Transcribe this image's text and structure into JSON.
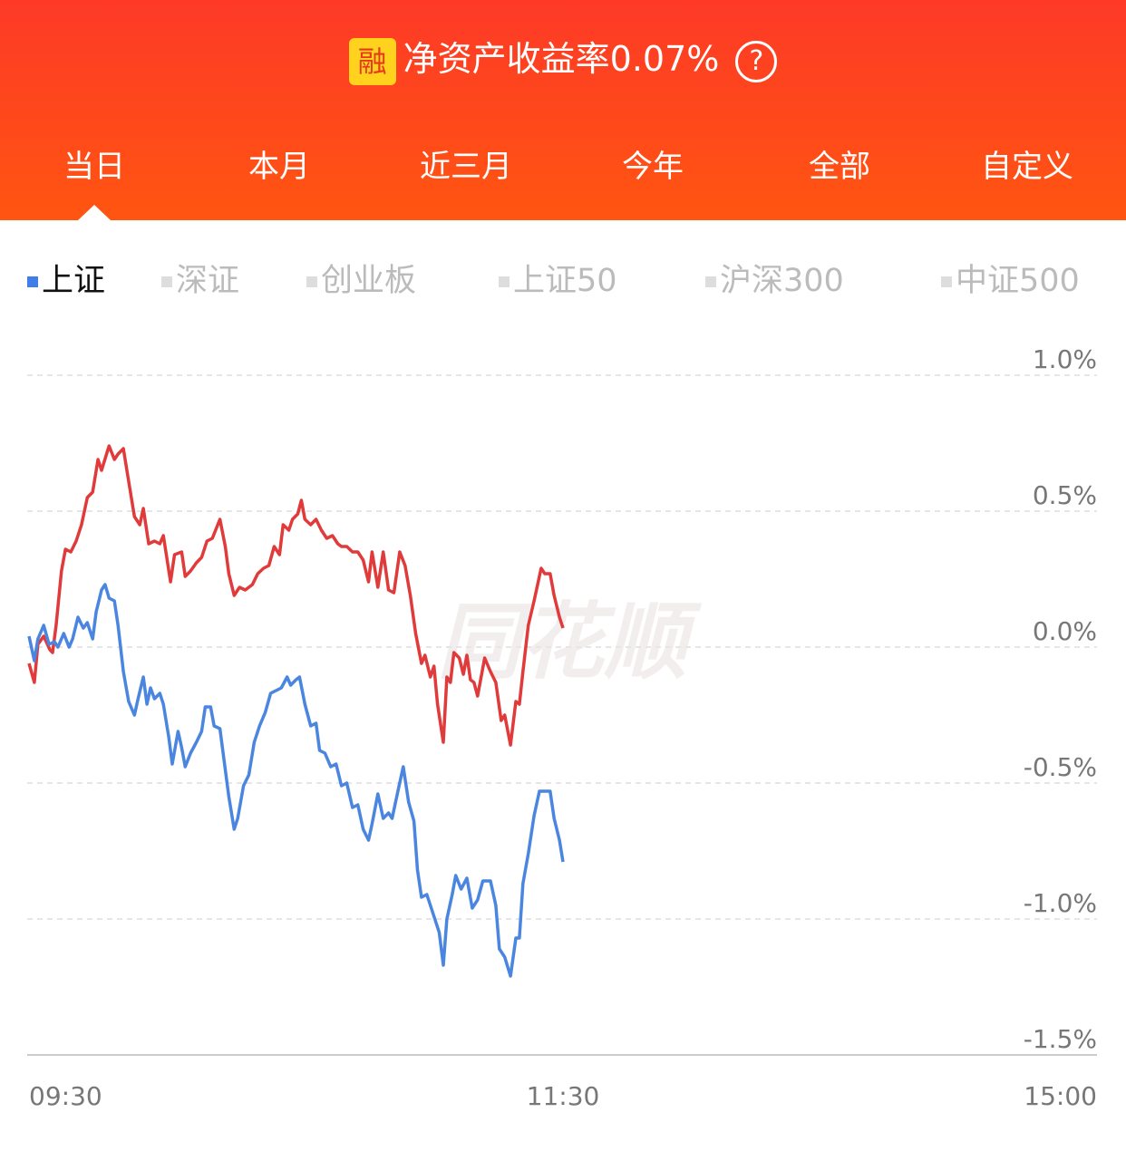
{
  "header": {
    "badge": "融",
    "title": "净资产收益率0.07%",
    "help": "?"
  },
  "tabs": [
    "当日",
    "本月",
    "近三月",
    "今年",
    "全部",
    "自定义"
  ],
  "indices": [
    "上证",
    "深证",
    "创业板",
    "上证50",
    "沪深300",
    "中证500"
  ],
  "watermark": "同花顺",
  "chart_data": {
    "type": "line",
    "xlim": [
      0,
      240
    ],
    "xticks": [
      {
        "value": 0,
        "label": "09:30"
      },
      {
        "value": 120,
        "label": "11:30"
      },
      {
        "value": 240,
        "label": "15:00"
      }
    ],
    "ylim": [
      -1.5,
      1.0
    ],
    "yticks": [
      {
        "value": 1.0,
        "label": "1.0%"
      },
      {
        "value": 0.5,
        "label": "0.5%"
      },
      {
        "value": 0,
        "label": "0.0%"
      },
      {
        "value": -0.5,
        "label": "-0.5%"
      },
      {
        "value": -1.0,
        "label": "-1.0%"
      },
      {
        "value": -1.5,
        "label": "-1.5%"
      }
    ],
    "grid": true,
    "series": [
      {
        "color": "#e03a3a",
        "x": [
          0,
          1.2,
          2.0,
          3.3,
          4.7,
          5.3,
          6.1,
          7.3,
          8.2,
          9.4,
          10.6,
          11.8,
          13.1,
          14.3,
          15.5,
          16.3,
          18.0,
          19.2,
          20.0,
          21.2,
          22.4,
          23.7,
          24.9,
          25.7,
          26.9,
          28.2,
          29.4,
          30.2,
          31.8,
          32.7,
          34.3,
          35.1,
          36.3,
          37.6,
          38.8,
          40.0,
          41.2,
          42.9,
          44.1,
          44.9,
          46.1,
          47.3,
          48.6,
          50.2,
          51.4,
          52.7,
          53.9,
          55.1,
          56.3,
          57.1,
          58.4,
          59.2,
          60.4,
          61.2,
          62.0,
          63.3,
          64.5,
          65.7,
          66.9,
          68.2,
          69.4,
          70.2,
          71.4,
          72.7,
          73.9,
          75.1,
          76.3,
          77.1,
          78.4,
          79.6,
          80.8,
          82.0,
          83.3,
          84.5,
          85.7,
          86.9,
          88.2,
          89.0,
          90.2,
          91.0,
          91.8,
          93.1,
          93.9,
          94.7,
          95.5,
          96.7,
          97.6,
          98.4,
          99.2,
          100.0,
          100.8,
          101.6,
          102.4,
          103.7,
          104.9,
          106.1,
          106.9,
          108.2,
          109.4,
          110.2,
          111.0,
          112.2,
          113.5,
          115.1,
          115.9,
          117.1,
          118.0,
          119.2,
          120
        ],
        "values": [
          -0.06,
          -0.13,
          0.01,
          0.04,
          -0.01,
          -0.02,
          0.08,
          0.28,
          0.36,
          0.35,
          0.39,
          0.45,
          0.55,
          0.57,
          0.69,
          0.65,
          0.74,
          0.69,
          0.71,
          0.73,
          0.61,
          0.48,
          0.45,
          0.51,
          0.38,
          0.39,
          0.38,
          0.41,
          0.24,
          0.34,
          0.35,
          0.26,
          0.28,
          0.31,
          0.33,
          0.39,
          0.4,
          0.47,
          0.37,
          0.27,
          0.19,
          0.22,
          0.21,
          0.23,
          0.27,
          0.29,
          0.3,
          0.37,
          0.34,
          0.45,
          0.43,
          0.47,
          0.49,
          0.54,
          0.47,
          0.45,
          0.47,
          0.43,
          0.4,
          0.41,
          0.38,
          0.37,
          0.37,
          0.35,
          0.35,
          0.32,
          0.24,
          0.35,
          0.22,
          0.35,
          0.21,
          0.2,
          0.35,
          0.3,
          0.19,
          0.05,
          -0.06,
          -0.03,
          -0.11,
          -0.07,
          -0.21,
          -0.35,
          -0.11,
          -0.13,
          -0.02,
          -0.04,
          -0.1,
          -0.03,
          -0.12,
          -0.13,
          -0.18,
          -0.11,
          -0.04,
          -0.09,
          -0.13,
          -0.27,
          -0.25,
          -0.36,
          -0.2,
          -0.21,
          -0.09,
          0.08,
          0.17,
          0.29,
          0.27,
          0.27,
          0.19,
          0.11,
          0.07
        ]
      },
      {
        "color": "#4a86e0",
        "x": [
          0,
          1.2,
          2.0,
          3.3,
          4.5,
          5.7,
          6.5,
          7.8,
          9.0,
          9.8,
          11.0,
          12.2,
          13.1,
          14.3,
          15.1,
          16.3,
          17.1,
          18.0,
          19.2,
          20.0,
          21.2,
          22.4,
          23.7,
          24.5,
          25.7,
          26.5,
          27.3,
          28.2,
          29.4,
          30.2,
          31.4,
          32.2,
          33.5,
          34.3,
          35.1,
          36.3,
          37.6,
          38.8,
          39.6,
          40.8,
          41.6,
          42.9,
          43.7,
          44.9,
          46.1,
          46.9,
          48.2,
          49.4,
          50.6,
          51.8,
          53.1,
          54.3,
          55.5,
          56.7,
          58.0,
          58.8,
          60.0,
          60.8,
          62.0,
          63.3,
          64.5,
          65.3,
          66.5,
          67.8,
          69.0,
          70.2,
          71.4,
          72.7,
          73.9,
          75.1,
          76.3,
          77.1,
          78.4,
          79.6,
          80.8,
          81.6,
          82.9,
          84.1,
          85.3,
          86.5,
          87.3,
          88.2,
          89.4,
          90.6,
          91.4,
          92.2,
          93.1,
          93.9,
          95.1,
          95.9,
          97.1,
          98.4,
          99.6,
          100.8,
          102.0,
          103.7,
          104.9,
          105.7,
          106.9,
          108.2,
          109.4,
          110.2,
          111.0,
          112.2,
          113.5,
          114.7,
          115.9,
          117.1,
          118.0,
          119.2,
          120
        ],
        "values": [
          0.04,
          -0.05,
          0.03,
          0.08,
          0.01,
          0.02,
          0.0,
          0.05,
          0.0,
          0.03,
          0.11,
          0.07,
          0.09,
          0.03,
          0.13,
          0.21,
          0.23,
          0.18,
          0.17,
          0.08,
          -0.09,
          -0.2,
          -0.25,
          -0.19,
          -0.11,
          -0.21,
          -0.15,
          -0.19,
          -0.17,
          -0.21,
          -0.33,
          -0.43,
          -0.31,
          -0.37,
          -0.44,
          -0.39,
          -0.35,
          -0.31,
          -0.22,
          -0.22,
          -0.29,
          -0.3,
          -0.4,
          -0.55,
          -0.67,
          -0.63,
          -0.51,
          -0.47,
          -0.35,
          -0.29,
          -0.24,
          -0.17,
          -0.16,
          -0.15,
          -0.11,
          -0.14,
          -0.12,
          -0.11,
          -0.21,
          -0.29,
          -0.28,
          -0.38,
          -0.39,
          -0.44,
          -0.43,
          -0.51,
          -0.5,
          -0.59,
          -0.58,
          -0.67,
          -0.71,
          -0.65,
          -0.54,
          -0.63,
          -0.61,
          -0.63,
          -0.53,
          -0.44,
          -0.57,
          -0.64,
          -0.82,
          -0.92,
          -0.91,
          -0.97,
          -1.01,
          -1.05,
          -1.17,
          -1.0,
          -0.91,
          -0.84,
          -0.89,
          -0.85,
          -0.96,
          -0.93,
          -0.86,
          -0.86,
          -0.95,
          -1.11,
          -1.14,
          -1.21,
          -1.07,
          -1.07,
          -0.87,
          -0.76,
          -0.62,
          -0.53,
          -0.53,
          -0.53,
          -0.63,
          -0.71,
          -0.79
        ]
      }
    ]
  }
}
